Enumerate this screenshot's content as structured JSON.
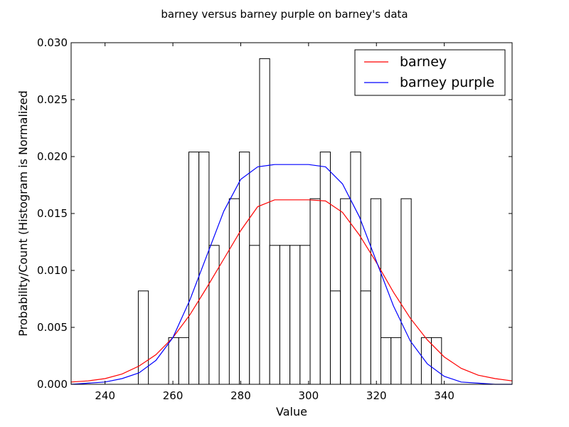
{
  "chart_data": {
    "type": "bar",
    "title": "barney versus barney purple on barney's data",
    "xlabel": "Value",
    "ylabel": "Probability/Count (Histogram is Normalized",
    "xlim": [
      230,
      360
    ],
    "ylim": [
      0,
      0.03
    ],
    "xticks": [
      "240",
      "260",
      "280",
      "300",
      "320",
      "340"
    ],
    "xtick_values": [
      240,
      260,
      280,
      300,
      320,
      340
    ],
    "yticks": [
      "0.000",
      "0.005",
      "0.010",
      "0.015",
      "0.020",
      "0.025",
      "0.030"
    ],
    "ytick_values": [
      0,
      0.005,
      0.01,
      0.015,
      0.02,
      0.025,
      0.03
    ],
    "grid": false,
    "legend_position": "upper-right",
    "histogram": {
      "bin_start": 249.8,
      "bin_width": 2.98,
      "values": [
        0.0082,
        0,
        0,
        0.0041,
        0.0041,
        0.0204,
        0.0204,
        0.0122,
        0,
        0.0163,
        0.0204,
        0.0122,
        0.0286,
        0.0122,
        0.0122,
        0.0122,
        0.0122,
        0.0163,
        0.0204,
        0.0082,
        0.0163,
        0.0204,
        0.0082,
        0.0163,
        0.0041,
        0.0041,
        0.0163,
        0,
        0.0041,
        0.0041
      ],
      "edge_color": "#000000",
      "fill_color": "#ffffff"
    },
    "series": [
      {
        "name": "barney",
        "color": "#ff0000",
        "x": [
          230,
          235,
          240,
          245,
          250,
          255,
          260,
          265,
          270,
          275,
          280,
          285,
          290,
          295,
          300,
          305,
          310,
          315,
          320,
          325,
          330,
          335,
          340,
          345,
          350,
          355,
          360
        ],
        "y": [
          0.0002,
          0.0003,
          0.0005,
          0.0009,
          0.0016,
          0.0026,
          0.0041,
          0.0061,
          0.0085,
          0.011,
          0.0135,
          0.0156,
          0.0162,
          0.0162,
          0.0162,
          0.0161,
          0.0151,
          0.0131,
          0.0107,
          0.0081,
          0.0058,
          0.0039,
          0.0024,
          0.0014,
          0.0008,
          0.0005,
          0.0003
        ]
      },
      {
        "name": "barney purple",
        "color": "#0000ff",
        "x": [
          230,
          235,
          240,
          245,
          250,
          255,
          260,
          265,
          270,
          275,
          280,
          285,
          290,
          295,
          300,
          305,
          310,
          315,
          320,
          325,
          330,
          335,
          340,
          345,
          350,
          355,
          360
        ],
        "y": [
          0,
          0.0001,
          0.0002,
          0.0005,
          0.001,
          0.0021,
          0.0041,
          0.0074,
          0.0113,
          0.0152,
          0.018,
          0.0191,
          0.0193,
          0.0193,
          0.0193,
          0.0191,
          0.0176,
          0.0147,
          0.0108,
          0.0069,
          0.0038,
          0.0018,
          0.0007,
          0.0002,
          0.0001,
          0,
          0
        ]
      }
    ]
  }
}
